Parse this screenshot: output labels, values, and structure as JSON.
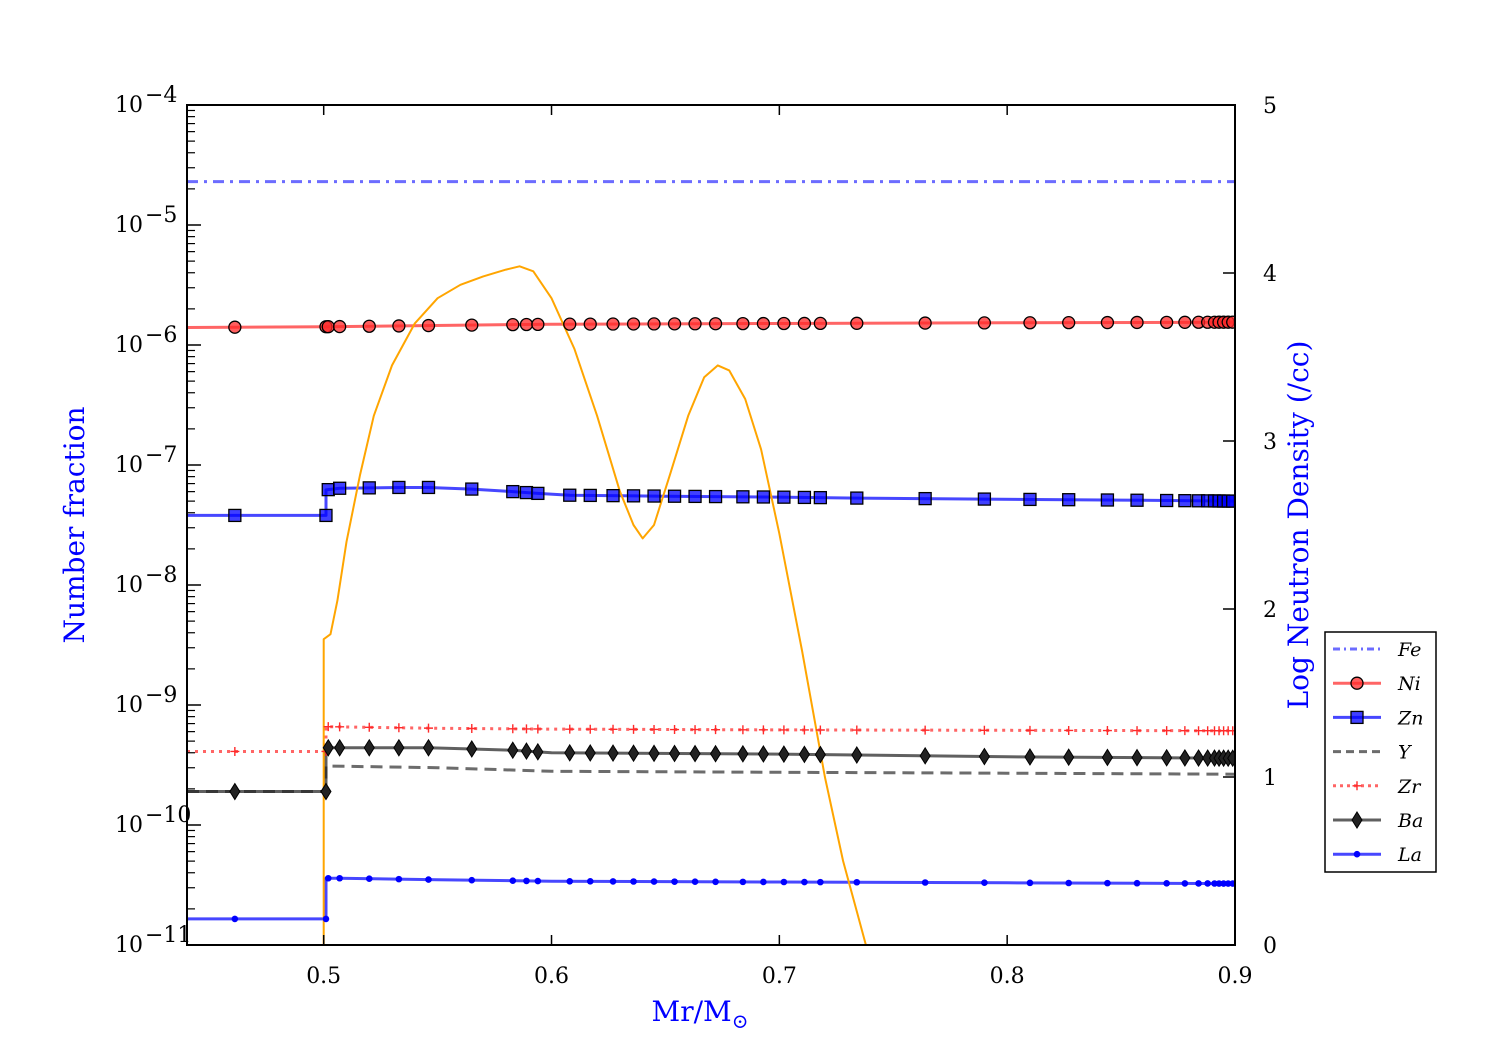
{
  "chart_data": {
    "type": "line",
    "title": "",
    "xlabel": "Mr/M",
    "xlabel_sub": "⊙",
    "ylabel_left": "Number fraction",
    "ylabel_right": "Log Neutron Density (/cc)",
    "xlim": [
      0.44,
      0.9
    ],
    "ylim_left": [
      1e-11,
      0.0001
    ],
    "yscale_left": "log",
    "ylim_right": [
      0,
      5
    ],
    "legend_position": "center-right, outside plot",
    "x_ticks": [
      {
        "value": 0.5,
        "label": "0.5"
      },
      {
        "value": 0.6,
        "label": "0.6"
      },
      {
        "value": 0.7,
        "label": "0.7"
      },
      {
        "value": 0.8,
        "label": "0.8"
      },
      {
        "value": 0.9,
        "label": "0.9"
      }
    ],
    "y_left_ticks": [
      {
        "exp": -4,
        "base": "10",
        "sup": "−4"
      },
      {
        "exp": -5,
        "base": "10",
        "sup": "−5"
      },
      {
        "exp": -6,
        "base": "10",
        "sup": "−6"
      },
      {
        "exp": -7,
        "base": "10",
        "sup": "−7"
      },
      {
        "exp": -8,
        "base": "10",
        "sup": "−8"
      },
      {
        "exp": -9,
        "base": "10",
        "sup": "−9"
      },
      {
        "exp": -10,
        "base": "10",
        "sup": "−10"
      },
      {
        "exp": -11,
        "base": "10",
        "sup": "−11"
      }
    ],
    "y_right_ticks": [
      {
        "value": 0,
        "label": "0"
      },
      {
        "value": 1,
        "label": "1"
      },
      {
        "value": 2,
        "label": "2"
      },
      {
        "value": 3,
        "label": "3"
      },
      {
        "value": 4,
        "label": "4"
      },
      {
        "value": 5,
        "label": "5"
      }
    ],
    "marker_x": [
      0.461,
      0.501,
      0.502,
      0.507,
      0.52,
      0.533,
      0.546,
      0.565,
      0.583,
      0.589,
      0.594,
      0.608,
      0.617,
      0.627,
      0.636,
      0.645,
      0.654,
      0.663,
      0.672,
      0.684,
      0.693,
      0.702,
      0.711,
      0.718,
      0.734,
      0.764,
      0.79,
      0.81,
      0.827,
      0.844,
      0.857,
      0.87,
      0.878,
      0.884,
      0.888,
      0.891,
      0.893,
      0.895,
      0.897,
      0.899
    ],
    "series": [
      {
        "name": "Fe",
        "color": "#3333ff",
        "style": "dashdot",
        "marker": "none",
        "axis": "left",
        "x": [
          0.44,
          0.9
        ],
        "y": [
          2.3e-05,
          2.3e-05
        ]
      },
      {
        "name": "Ni",
        "color": "#ff2a2a",
        "style": "solid",
        "marker": "circle",
        "axis": "left",
        "x": [
          0.44,
          0.501,
          0.6,
          0.7,
          0.8,
          0.9
        ],
        "y": [
          1.4e-06,
          1.42e-06,
          1.49e-06,
          1.51e-06,
          1.53e-06,
          1.55e-06
        ]
      },
      {
        "name": "Zn",
        "color": "#0000ff",
        "style": "solid",
        "marker": "square",
        "axis": "left",
        "x": [
          0.44,
          0.501,
          0.501,
          0.507,
          0.533,
          0.546,
          0.565,
          0.583,
          0.594,
          0.608,
          0.65,
          0.7,
          0.734,
          0.79,
          0.85,
          0.9
        ],
        "y": [
          3.8e-08,
          3.8e-08,
          6.2e-08,
          6.4e-08,
          6.5e-08,
          6.5e-08,
          6.3e-08,
          6e-08,
          5.8e-08,
          5.6e-08,
          5.5e-08,
          5.4e-08,
          5.3e-08,
          5.2e-08,
          5.1e-08,
          5e-08
        ]
      },
      {
        "name": "Y",
        "color": "#333333",
        "style": "dashed",
        "marker": "none",
        "axis": "left",
        "x": [
          0.44,
          0.501,
          0.501,
          0.55,
          0.6,
          0.7,
          0.8,
          0.9
        ],
        "y": [
          1.9e-10,
          1.9e-10,
          3.1e-10,
          3e-10,
          2.8e-10,
          2.75e-10,
          2.7e-10,
          2.65e-10
        ]
      },
      {
        "name": "Zr",
        "color": "#ff2a2a",
        "style": "dotted",
        "marker": "plus",
        "axis": "left",
        "x": [
          0.44,
          0.501,
          0.501,
          0.55,
          0.6,
          0.7,
          0.8,
          0.9
        ],
        "y": [
          4.1e-10,
          4.1e-10,
          6.6e-10,
          6.4e-10,
          6.3e-10,
          6.2e-10,
          6.15e-10,
          6.1e-10
        ]
      },
      {
        "name": "Ba",
        "color": "#222222",
        "style": "solid",
        "marker": "diamond",
        "axis": "left",
        "x": [
          0.44,
          0.501,
          0.501,
          0.546,
          0.565,
          0.583,
          0.6,
          0.7,
          0.8,
          0.9
        ],
        "y": [
          1.9e-10,
          1.9e-10,
          4.4e-10,
          4.4e-10,
          4.3e-10,
          4.2e-10,
          4e-10,
          3.9e-10,
          3.7e-10,
          3.6e-10
        ]
      },
      {
        "name": "La",
        "color": "#0000ff",
        "style": "solid",
        "marker": "dot",
        "axis": "left",
        "x": [
          0.44,
          0.501,
          0.501,
          0.507,
          0.55,
          0.6,
          0.7,
          0.8,
          0.9
        ],
        "y": [
          1.65e-11,
          1.65e-11,
          3.6e-11,
          3.6e-11,
          3.5e-11,
          3.4e-11,
          3.35e-11,
          3.3e-11,
          3.25e-11
        ]
      },
      {
        "name": "Log neutron density",
        "color": "#ffa500",
        "style": "solid",
        "marker": "none",
        "axis": "right",
        "in_legend": false,
        "x": [
          0.5,
          0.5,
          0.503,
          0.506,
          0.51,
          0.516,
          0.522,
          0.53,
          0.54,
          0.55,
          0.56,
          0.57,
          0.58,
          0.586,
          0.592,
          0.6,
          0.61,
          0.62,
          0.63,
          0.636,
          0.64,
          0.645,
          0.652,
          0.66,
          0.667,
          0.673,
          0.678,
          0.685,
          0.692,
          0.7,
          0.71,
          0.72,
          0.728,
          0.734,
          0.738
        ],
        "y": [
          0,
          1.82,
          1.85,
          2.05,
          2.4,
          2.8,
          3.15,
          3.45,
          3.7,
          3.85,
          3.93,
          3.98,
          4.02,
          4.04,
          4.01,
          3.85,
          3.55,
          3.15,
          2.7,
          2.5,
          2.42,
          2.5,
          2.8,
          3.15,
          3.38,
          3.45,
          3.42,
          3.25,
          2.95,
          2.45,
          1.75,
          1.0,
          0.5,
          0.2,
          0
        ]
      }
    ]
  }
}
